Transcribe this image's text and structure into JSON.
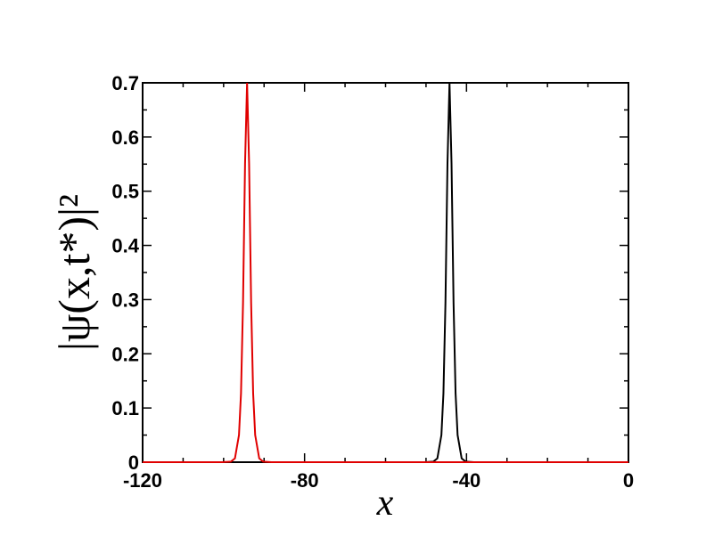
{
  "chart_data": {
    "type": "line",
    "xlabel": "x",
    "ylabel": "|ψ(x,t*)|²",
    "x": [
      -120,
      -100.2,
      -98.2,
      -97.2,
      -96.2,
      -95.7,
      -95.2,
      -94.7,
      -94.2,
      -93.7,
      -93.2,
      -92.7,
      -92.2,
      -91.2,
      -90.2,
      -88.2,
      -50.2,
      -48.2,
      -47.2,
      -46.2,
      -45.7,
      -45.2,
      -44.7,
      -44.2,
      -43.7,
      -43.2,
      -42.7,
      -42.2,
      -41.2,
      -40.2,
      -38.2,
      0
    ],
    "series": [
      {
        "color": "#000000",
        "values": [
          0,
          0,
          0,
          0,
          0,
          0,
          0,
          0,
          0,
          0,
          0,
          0,
          0,
          0,
          0,
          0,
          0,
          0.001,
          0.007,
          0.05,
          0.127,
          0.294,
          0.551,
          0.7,
          0.551,
          0.294,
          0.127,
          0.05,
          0.007,
          0.001,
          0,
          0
        ]
      },
      {
        "color": "#e00000",
        "values": [
          0,
          0,
          0.001,
          0.007,
          0.05,
          0.127,
          0.294,
          0.551,
          0.7,
          0.551,
          0.294,
          0.127,
          0.05,
          0.007,
          0.001,
          0,
          0,
          0,
          0,
          0,
          0,
          0,
          0,
          0,
          0,
          0,
          0,
          0,
          0,
          0,
          0,
          0
        ]
      }
    ],
    "xlim": [
      -120,
      0
    ],
    "xticks": [
      -120,
      -80,
      -40,
      0
    ],
    "x_minor_ticks": [
      -110,
      -100,
      -90,
      -70,
      -60,
      -50,
      -30,
      -20,
      -10
    ],
    "ylim": [
      0,
      0.7
    ],
    "yticks": [
      0,
      0.1,
      0.2,
      0.3,
      0.4,
      0.5,
      0.6,
      0.7
    ],
    "y_minor_ticks": [
      0.05,
      0.15,
      0.25,
      0.35,
      0.45,
      0.55,
      0.65
    ]
  }
}
